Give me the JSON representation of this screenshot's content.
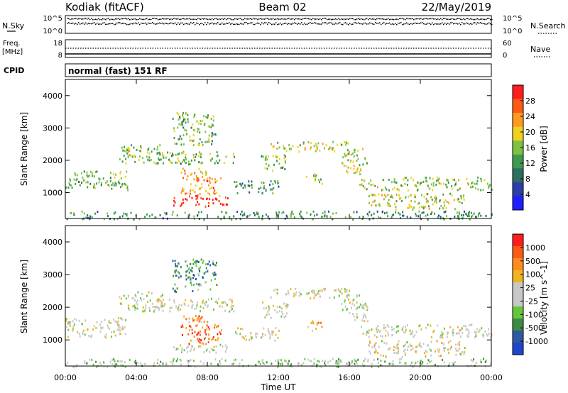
{
  "header": {
    "station": "Kodiak (fitACF)",
    "beam": "Beam 02",
    "date": "22/May/2019"
  },
  "noise_panel": {
    "left_label": "N.Sky",
    "right_label": "N.Search",
    "left_ticks": [
      "10^5",
      "10^0"
    ],
    "right_ticks": [
      "10^5",
      "10^0"
    ]
  },
  "freq_panel": {
    "left_label_1": "Freq.",
    "left_label_2": "[MHz]",
    "right_label": "Nave",
    "left_ticks": [
      "18",
      "8"
    ],
    "right_ticks": [
      "60",
      "0"
    ]
  },
  "cpid": {
    "label": "CPID",
    "value": "normal (fast) 151 RF"
  },
  "colors": {
    "power_scale": [
      "#1e1eff",
      "#2a3fa8",
      "#2e6e5e",
      "#3f9a50",
      "#7fc241",
      "#f0d21e",
      "#ff9a1e",
      "#ff5a14",
      "#ff1e1e"
    ],
    "velocity_scale": [
      "#1e46c8",
      "#2d5aa0",
      "#3c8c46",
      "#64c83c",
      "#c8c8c8",
      "#c8c8c8",
      "#f0b41e",
      "#ff8c1e",
      "#ff5a14",
      "#ff1e1e"
    ]
  },
  "chart_data": [
    {
      "type": "heatmap",
      "name": "power",
      "ylabel": "Slant Range [km]",
      "yticks": [
        "1000",
        "2000",
        "3000",
        "4000"
      ],
      "ylim": [
        200,
        4500
      ],
      "xlim": [
        0,
        24
      ],
      "colorbar": {
        "label": "Power [dB]",
        "ticks": [
          "4",
          "8",
          "12",
          "16",
          "20",
          "24",
          "28"
        ],
        "range": [
          0,
          32
        ]
      },
      "bands": [
        {
          "t0": 0.0,
          "t1": 3.5,
          "r0": 1100,
          "r1": 1700,
          "level": 0.45
        },
        {
          "t0": 3.0,
          "t1": 5.5,
          "r0": 1900,
          "r1": 2500,
          "level": 0.5
        },
        {
          "t0": 5.0,
          "t1": 9.5,
          "r0": 1900,
          "r1": 2300,
          "level": 0.45
        },
        {
          "t0": 6.0,
          "t1": 9.2,
          "r0": 600,
          "r1": 900,
          "level": 0.95
        },
        {
          "t0": 6.5,
          "t1": 8.8,
          "r0": 900,
          "r1": 1500,
          "level": 0.75
        },
        {
          "t0": 6.5,
          "t1": 8.0,
          "r0": 1500,
          "r1": 1800,
          "level": 0.7
        },
        {
          "t0": 6.0,
          "t1": 8.5,
          "r0": 2500,
          "r1": 3500,
          "level": 0.45
        },
        {
          "t0": 9.5,
          "t1": 12.0,
          "r0": 1000,
          "r1": 1400,
          "level": 0.35
        },
        {
          "t0": 11.5,
          "t1": 16.0,
          "r0": 2300,
          "r1": 2600,
          "level": 0.6
        },
        {
          "t0": 11.0,
          "t1": 12.5,
          "r0": 1700,
          "r1": 2200,
          "level": 0.45
        },
        {
          "t0": 13.5,
          "t1": 14.5,
          "r0": 1300,
          "r1": 1600,
          "level": 0.5
        },
        {
          "t0": 15.5,
          "t1": 17.0,
          "r0": 1600,
          "r1": 2400,
          "level": 0.55
        },
        {
          "t0": 16.5,
          "t1": 24.0,
          "r0": 1100,
          "r1": 1500,
          "level": 0.5
        },
        {
          "t0": 17.0,
          "t1": 22.5,
          "r0": 500,
          "r1": 1000,
          "level": 0.55
        },
        {
          "t0": 0.0,
          "t1": 24.0,
          "r0": 200,
          "r1": 450,
          "level": 0.35
        }
      ]
    },
    {
      "type": "heatmap",
      "name": "velocity",
      "xlabel": "Time UT",
      "ylabel": "Slant Range [km]",
      "xticks": [
        "00:00",
        "04:00",
        "08:00",
        "12:00",
        "16:00",
        "20:00",
        "00:00"
      ],
      "yticks": [
        "1000",
        "2000",
        "3000",
        "4000"
      ],
      "ylim": [
        200,
        4500
      ],
      "xlim": [
        0,
        24
      ],
      "colorbar": {
        "label": "Velocity [m s^-1]",
        "ticks": [
          "1000",
          "500",
          "100",
          "25",
          "-25",
          "-100",
          "-500",
          "-1000"
        ]
      },
      "bands": [
        {
          "t0": 0.0,
          "t1": 3.5,
          "r0": 1100,
          "r1": 1700,
          "level": 0.5
        },
        {
          "t0": 3.0,
          "t1": 5.5,
          "r0": 1900,
          "r1": 2500,
          "level": 0.5
        },
        {
          "t0": 5.0,
          "t1": 9.5,
          "r0": 1900,
          "r1": 2300,
          "level": 0.5
        },
        {
          "t0": 6.0,
          "t1": 9.2,
          "r0": 600,
          "r1": 900,
          "level": 0.5
        },
        {
          "t0": 6.5,
          "t1": 8.8,
          "r0": 900,
          "r1": 1500,
          "level": 0.8
        },
        {
          "t0": 6.5,
          "t1": 8.0,
          "r0": 1500,
          "r1": 1800,
          "level": 0.75
        },
        {
          "t0": 6.0,
          "t1": 8.5,
          "r0": 2500,
          "r1": 3500,
          "level": 0.25
        },
        {
          "t0": 9.5,
          "t1": 12.0,
          "r0": 1000,
          "r1": 1400,
          "level": 0.5
        },
        {
          "t0": 11.5,
          "t1": 16.0,
          "r0": 2300,
          "r1": 2600,
          "level": 0.5
        },
        {
          "t0": 11.0,
          "t1": 12.5,
          "r0": 1700,
          "r1": 2200,
          "level": 0.5
        },
        {
          "t0": 13.5,
          "t1": 14.5,
          "r0": 1300,
          "r1": 1600,
          "level": 0.7
        },
        {
          "t0": 15.5,
          "t1": 17.0,
          "r0": 1600,
          "r1": 2400,
          "level": 0.5
        },
        {
          "t0": 16.5,
          "t1": 24.0,
          "r0": 1100,
          "r1": 1500,
          "level": 0.5
        },
        {
          "t0": 17.0,
          "t1": 22.5,
          "r0": 500,
          "r1": 1000,
          "level": 0.55
        },
        {
          "t0": 0.0,
          "t1": 24.0,
          "r0": 200,
          "r1": 450,
          "level": 0.4
        }
      ]
    }
  ]
}
